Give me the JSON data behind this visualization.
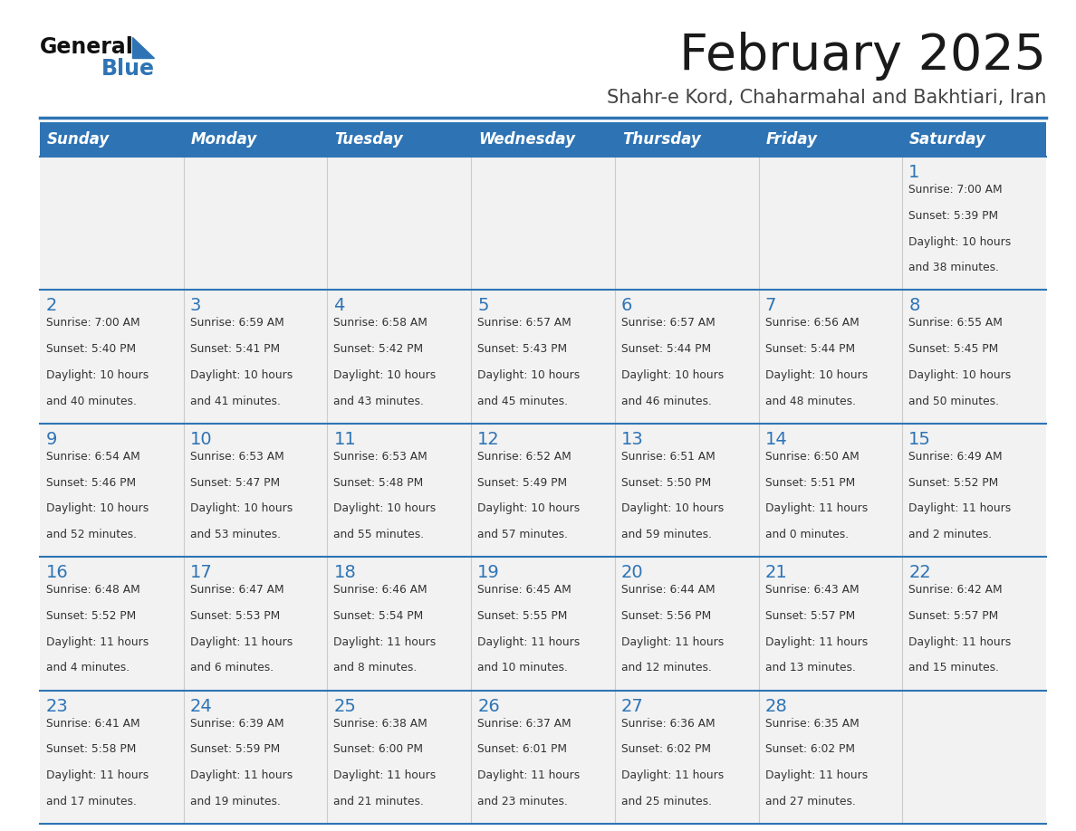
{
  "title": "February 2025",
  "subtitle": "Shahr-e Kord, Chaharmahal and Bakhtiari, Iran",
  "header_bg": "#2E74B5",
  "header_text_color": "#FFFFFF",
  "cell_bg_light": "#F2F2F2",
  "day_names": [
    "Sunday",
    "Monday",
    "Tuesday",
    "Wednesday",
    "Thursday",
    "Friday",
    "Saturday"
  ],
  "title_color": "#1A1A1A",
  "subtitle_color": "#444444",
  "number_color": "#2E74B5",
  "text_color": "#333333",
  "line_color": "#2E74B5",
  "logo_general_color": "#111111",
  "logo_blue_color": "#2E74B5",
  "days": [
    {
      "day": 1,
      "col": 6,
      "row": 0,
      "sunrise": "7:00 AM",
      "sunset": "5:39 PM",
      "daylight_h": "10 hours",
      "daylight_m": "38 minutes."
    },
    {
      "day": 2,
      "col": 0,
      "row": 1,
      "sunrise": "7:00 AM",
      "sunset": "5:40 PM",
      "daylight_h": "10 hours",
      "daylight_m": "40 minutes."
    },
    {
      "day": 3,
      "col": 1,
      "row": 1,
      "sunrise": "6:59 AM",
      "sunset": "5:41 PM",
      "daylight_h": "10 hours",
      "daylight_m": "41 minutes."
    },
    {
      "day": 4,
      "col": 2,
      "row": 1,
      "sunrise": "6:58 AM",
      "sunset": "5:42 PM",
      "daylight_h": "10 hours",
      "daylight_m": "43 minutes."
    },
    {
      "day": 5,
      "col": 3,
      "row": 1,
      "sunrise": "6:57 AM",
      "sunset": "5:43 PM",
      "daylight_h": "10 hours",
      "daylight_m": "45 minutes."
    },
    {
      "day": 6,
      "col": 4,
      "row": 1,
      "sunrise": "6:57 AM",
      "sunset": "5:44 PM",
      "daylight_h": "10 hours",
      "daylight_m": "46 minutes."
    },
    {
      "day": 7,
      "col": 5,
      "row": 1,
      "sunrise": "6:56 AM",
      "sunset": "5:44 PM",
      "daylight_h": "10 hours",
      "daylight_m": "48 minutes."
    },
    {
      "day": 8,
      "col": 6,
      "row": 1,
      "sunrise": "6:55 AM",
      "sunset": "5:45 PM",
      "daylight_h": "10 hours",
      "daylight_m": "50 minutes."
    },
    {
      "day": 9,
      "col": 0,
      "row": 2,
      "sunrise": "6:54 AM",
      "sunset": "5:46 PM",
      "daylight_h": "10 hours",
      "daylight_m": "52 minutes."
    },
    {
      "day": 10,
      "col": 1,
      "row": 2,
      "sunrise": "6:53 AM",
      "sunset": "5:47 PM",
      "daylight_h": "10 hours",
      "daylight_m": "53 minutes."
    },
    {
      "day": 11,
      "col": 2,
      "row": 2,
      "sunrise": "6:53 AM",
      "sunset": "5:48 PM",
      "daylight_h": "10 hours",
      "daylight_m": "55 minutes."
    },
    {
      "day": 12,
      "col": 3,
      "row": 2,
      "sunrise": "6:52 AM",
      "sunset": "5:49 PM",
      "daylight_h": "10 hours",
      "daylight_m": "57 minutes."
    },
    {
      "day": 13,
      "col": 4,
      "row": 2,
      "sunrise": "6:51 AM",
      "sunset": "5:50 PM",
      "daylight_h": "10 hours",
      "daylight_m": "59 minutes."
    },
    {
      "day": 14,
      "col": 5,
      "row": 2,
      "sunrise": "6:50 AM",
      "sunset": "5:51 PM",
      "daylight_h": "11 hours",
      "daylight_m": "0 minutes."
    },
    {
      "day": 15,
      "col": 6,
      "row": 2,
      "sunrise": "6:49 AM",
      "sunset": "5:52 PM",
      "daylight_h": "11 hours",
      "daylight_m": "2 minutes."
    },
    {
      "day": 16,
      "col": 0,
      "row": 3,
      "sunrise": "6:48 AM",
      "sunset": "5:52 PM",
      "daylight_h": "11 hours",
      "daylight_m": "4 minutes."
    },
    {
      "day": 17,
      "col": 1,
      "row": 3,
      "sunrise": "6:47 AM",
      "sunset": "5:53 PM",
      "daylight_h": "11 hours",
      "daylight_m": "6 minutes."
    },
    {
      "day": 18,
      "col": 2,
      "row": 3,
      "sunrise": "6:46 AM",
      "sunset": "5:54 PM",
      "daylight_h": "11 hours",
      "daylight_m": "8 minutes."
    },
    {
      "day": 19,
      "col": 3,
      "row": 3,
      "sunrise": "6:45 AM",
      "sunset": "5:55 PM",
      "daylight_h": "11 hours",
      "daylight_m": "10 minutes."
    },
    {
      "day": 20,
      "col": 4,
      "row": 3,
      "sunrise": "6:44 AM",
      "sunset": "5:56 PM",
      "daylight_h": "11 hours",
      "daylight_m": "12 minutes."
    },
    {
      "day": 21,
      "col": 5,
      "row": 3,
      "sunrise": "6:43 AM",
      "sunset": "5:57 PM",
      "daylight_h": "11 hours",
      "daylight_m": "13 minutes."
    },
    {
      "day": 22,
      "col": 6,
      "row": 3,
      "sunrise": "6:42 AM",
      "sunset": "5:57 PM",
      "daylight_h": "11 hours",
      "daylight_m": "15 minutes."
    },
    {
      "day": 23,
      "col": 0,
      "row": 4,
      "sunrise": "6:41 AM",
      "sunset": "5:58 PM",
      "daylight_h": "11 hours",
      "daylight_m": "17 minutes."
    },
    {
      "day": 24,
      "col": 1,
      "row": 4,
      "sunrise": "6:39 AM",
      "sunset": "5:59 PM",
      "daylight_h": "11 hours",
      "daylight_m": "19 minutes."
    },
    {
      "day": 25,
      "col": 2,
      "row": 4,
      "sunrise": "6:38 AM",
      "sunset": "6:00 PM",
      "daylight_h": "11 hours",
      "daylight_m": "21 minutes."
    },
    {
      "day": 26,
      "col": 3,
      "row": 4,
      "sunrise": "6:37 AM",
      "sunset": "6:01 PM",
      "daylight_h": "11 hours",
      "daylight_m": "23 minutes."
    },
    {
      "day": 27,
      "col": 4,
      "row": 4,
      "sunrise": "6:36 AM",
      "sunset": "6:02 PM",
      "daylight_h": "11 hours",
      "daylight_m": "25 minutes."
    },
    {
      "day": 28,
      "col": 5,
      "row": 4,
      "sunrise": "6:35 AM",
      "sunset": "6:02 PM",
      "daylight_h": "11 hours",
      "daylight_m": "27 minutes."
    }
  ]
}
